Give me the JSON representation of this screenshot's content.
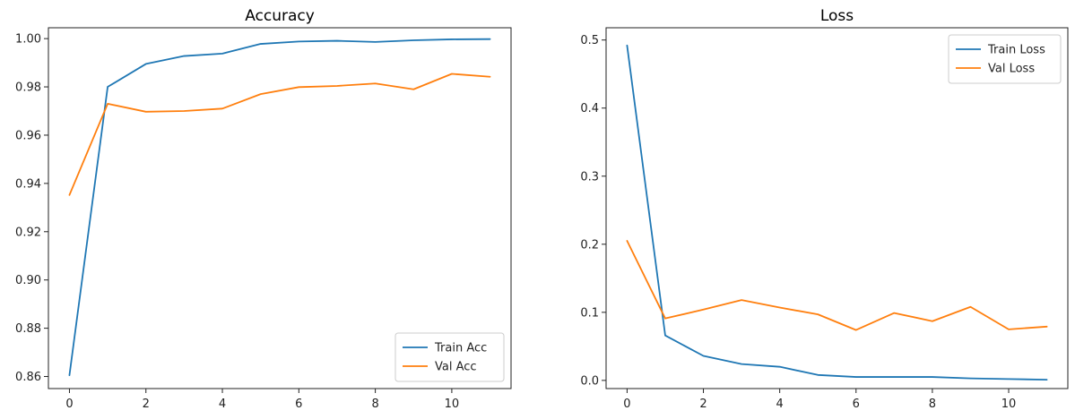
{
  "colors": {
    "train": "#1f77b4",
    "val": "#ff7f0e"
  },
  "chart_data": [
    {
      "type": "line",
      "title": "Accuracy",
      "xlabel": "",
      "ylabel": "",
      "x": [
        0,
        1,
        2,
        3,
        4,
        5,
        6,
        7,
        8,
        9,
        10,
        11
      ],
      "xlim": [
        -0.55,
        11.55
      ],
      "ylim": [
        0.855,
        1.0045
      ],
      "xticks": [
        0,
        2,
        4,
        6,
        8,
        10
      ],
      "yticks": [
        0.86,
        0.88,
        0.9,
        0.92,
        0.94,
        0.96,
        0.98,
        1.0
      ],
      "ytick_labels": [
        "0.86",
        "0.88",
        "0.90",
        "0.92",
        "0.94",
        "0.96",
        "0.98",
        "1.00"
      ],
      "legend_position": "lower-right",
      "grid": false,
      "series": [
        {
          "name": "Train Acc",
          "color_key": "train",
          "values": [
            0.8605,
            0.98,
            0.9895,
            0.9928,
            0.9938,
            0.9978,
            0.9988,
            0.9991,
            0.9986,
            0.9993,
            0.9997,
            0.9998
          ]
        },
        {
          "name": "Val Acc",
          "color_key": "val",
          "values": [
            0.9352,
            0.973,
            0.9697,
            0.97,
            0.971,
            0.977,
            0.9799,
            0.9804,
            0.9814,
            0.979,
            0.9854,
            0.9842
          ]
        }
      ]
    },
    {
      "type": "line",
      "title": "Loss",
      "xlabel": "",
      "ylabel": "",
      "x": [
        0,
        1,
        2,
        3,
        4,
        5,
        6,
        7,
        8,
        9,
        10,
        11
      ],
      "xlim": [
        -0.55,
        11.55
      ],
      "ylim": [
        -0.012,
        0.518
      ],
      "xticks": [
        0,
        2,
        4,
        6,
        8,
        10
      ],
      "yticks": [
        0.0,
        0.1,
        0.2,
        0.3,
        0.4,
        0.5
      ],
      "ytick_labels": [
        "0.0",
        "0.1",
        "0.2",
        "0.3",
        "0.4",
        "0.5"
      ],
      "legend_position": "upper-right",
      "grid": false,
      "series": [
        {
          "name": "Train Loss",
          "color_key": "train",
          "values": [
            0.492,
            0.066,
            0.036,
            0.024,
            0.02,
            0.008,
            0.005,
            0.005,
            0.005,
            0.003,
            0.002,
            0.001
          ]
        },
        {
          "name": "Val Loss",
          "color_key": "val",
          "values": [
            0.205,
            0.091,
            0.104,
            0.118,
            0.107,
            0.097,
            0.074,
            0.099,
            0.087,
            0.108,
            0.075,
            0.079
          ]
        }
      ]
    }
  ]
}
